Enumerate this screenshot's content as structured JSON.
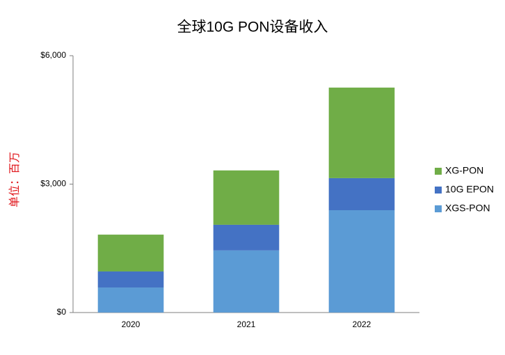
{
  "chart_data": {
    "type": "bar",
    "stacked": true,
    "title": "全球10G PON设备收入",
    "y_label": "单位：百万",
    "categories": [
      "2020",
      "2021",
      "2022"
    ],
    "series": [
      {
        "name": "XGS-PON",
        "color": "#5b9bd5",
        "values": [
          585,
          1450,
          2390
        ]
      },
      {
        "name": "10G EPON",
        "color": "#4472c4",
        "values": [
          375,
          600,
          750
        ]
      },
      {
        "name": "XG-PON",
        "color": "#70ad47",
        "values": [
          860,
          1270,
          2115
        ]
      }
    ],
    "ylim": [
      0,
      6000
    ],
    "yticks": [
      {
        "value": 0,
        "label": "$0"
      },
      {
        "value": 3000,
        "label": "$3,000"
      },
      {
        "value": 6000,
        "label": "$6,000"
      }
    ],
    "grid": false,
    "legend": "right"
  }
}
